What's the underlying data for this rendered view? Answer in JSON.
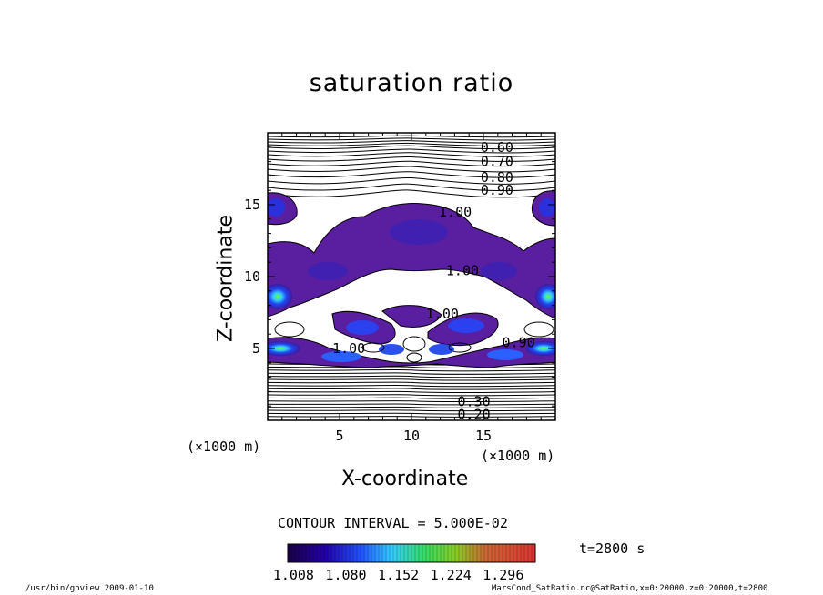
{
  "title": "saturation ratio",
  "x_axis": {
    "label": "X-coordinate",
    "unit_left": "(×1000 m)",
    "unit_right": "(×1000 m)"
  },
  "y_axis": {
    "label": "Z-coordinate"
  },
  "contour_interval": "CONTOUR INTERVAL = 5.000E-02",
  "time_label": "t=2800 s",
  "footer": {
    "left": "/usr/bin/gpview   2009-01-10",
    "right": "MarsCond_SatRatio.nc@SatRatio,x=0:20000,z=0:20000,t=2800"
  },
  "chart_data": {
    "type": "heatmap",
    "title": "saturation ratio",
    "xlabel": "X-coordinate",
    "ylabel": "Z-coordinate",
    "xlim": [
      0,
      20
    ],
    "ylim": [
      0,
      20
    ],
    "xticks": [
      "5",
      "10",
      "15"
    ],
    "yticks": [
      "5",
      "10",
      "15"
    ],
    "contour_labels": [
      {
        "text": "0.60",
        "x": 14.8,
        "z": 19.0
      },
      {
        "text": "0.70",
        "x": 14.8,
        "z": 18.0
      },
      {
        "text": "0.80",
        "x": 14.8,
        "z": 16.9
      },
      {
        "text": "0.90",
        "x": 14.8,
        "z": 16.0
      },
      {
        "text": "1.00",
        "x": 11.9,
        "z": 14.5
      },
      {
        "text": "1.00",
        "x": 12.4,
        "z": 10.4
      },
      {
        "text": "1.00",
        "x": 11.0,
        "z": 7.4
      },
      {
        "text": "1.00",
        "x": 4.5,
        "z": 5.0
      },
      {
        "text": "0.90",
        "x": 16.3,
        "z": 5.4
      },
      {
        "text": "0.30",
        "x": 13.2,
        "z": 1.3
      },
      {
        "text": "0.20",
        "x": 13.2,
        "z": 0.4
      }
    ],
    "colorbar": {
      "tick_labels": [
        "1.008",
        "1.080",
        "1.152",
        "1.224",
        "1.296"
      ],
      "range": [
        1.0,
        1.34
      ]
    },
    "grid": false
  },
  "colors": {
    "min": "#1a0033",
    "mid": "#3322cc",
    "high_a": "#33ccff",
    "high_b": "#66ff33",
    "max": "#cc2222"
  }
}
